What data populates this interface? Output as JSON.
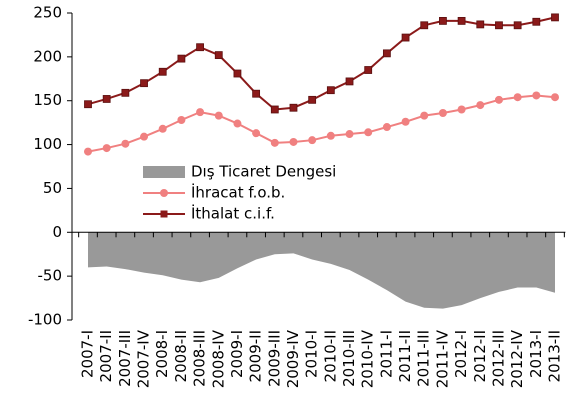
{
  "chart_data": {
    "type": "line",
    "categories": [
      "2007-I",
      "2007-II",
      "2007-III",
      "2007-IV",
      "2008-I",
      "2008-II",
      "2008-III",
      "2008-IV",
      "2009-I",
      "2009-II",
      "2009-III",
      "2009-IV",
      "2010-I",
      "2010-II",
      "2010-III",
      "2010-IV",
      "2011-I",
      "2011-II",
      "2011-III",
      "2011-IV",
      "2012-I",
      "2012-II",
      "2012-III",
      "2012-IV",
      "2013-I",
      "2013-II"
    ],
    "series": [
      {
        "name": "Dış Ticaret Dengesi",
        "type": "area",
        "color": "#999999",
        "values": [
          -40,
          -39,
          -42,
          -46,
          -49,
          -54,
          -57,
          -52,
          -41,
          -31,
          -25,
          -24,
          -31,
          -36,
          -43,
          -54,
          -66,
          -79,
          -86,
          -87,
          -83,
          -75,
          -68,
          -63,
          -63,
          -69
        ]
      },
      {
        "name": "İhracat f.o.b.",
        "type": "line",
        "marker": "circle",
        "color": "#f08080",
        "values": [
          92,
          96,
          101,
          109,
          118,
          128,
          137,
          133,
          124,
          113,
          102,
          103,
          105,
          110,
          112,
          114,
          120,
          126,
          133,
          136,
          140,
          145,
          151,
          154,
          156,
          154
        ]
      },
      {
        "name": "İthalat c.i.f.",
        "type": "line",
        "marker": "square",
        "color": "#8b1a1a",
        "values": [
          146,
          152,
          159,
          170,
          183,
          198,
          211,
          202,
          181,
          158,
          140,
          142,
          151,
          162,
          172,
          185,
          204,
          222,
          236,
          241,
          241,
          237,
          236,
          236,
          240,
          245
        ]
      }
    ],
    "ylim": [
      -100,
      250
    ],
    "yticks": [
      -100,
      -50,
      0,
      50,
      100,
      150,
      200,
      250
    ]
  }
}
